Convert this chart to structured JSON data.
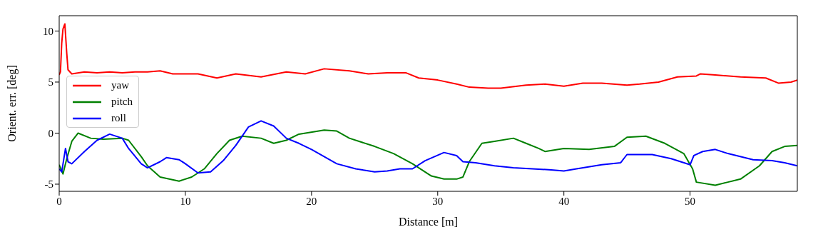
{
  "chart_data": {
    "type": "line",
    "xlabel": "Distance [m]",
    "ylabel": "Orient. err. [deg]",
    "xlim": [
      0,
      58.5
    ],
    "ylim": [
      -5.7,
      11.5
    ],
    "xticks": [
      0,
      10,
      20,
      30,
      40,
      50
    ],
    "yticks": [
      -5,
      0,
      5,
      10
    ],
    "grid": false,
    "legend": "left",
    "marker": "none",
    "line_style": "solid",
    "series": [
      {
        "name": "yaw",
        "color": "#ff0000",
        "x": [
          0,
          0.1,
          0.2,
          0.3,
          0.45,
          0.6,
          0.7,
          1,
          2,
          3,
          4,
          5,
          6,
          7,
          8,
          9,
          10,
          11,
          12.5,
          14,
          16,
          18,
          19.5,
          21,
          23,
          24.5,
          26,
          27.5,
          28.5,
          30,
          31.5,
          32.5,
          34,
          35,
          37,
          38.5,
          40,
          41.5,
          43,
          45,
          46,
          47.5,
          49,
          50.5,
          50.8,
          52,
          54,
          56,
          57,
          58,
          58.5
        ],
        "values": [
          5.7,
          6,
          8.8,
          10.2,
          10.7,
          7.8,
          6.2,
          5.8,
          6,
          5.9,
          6,
          5.9,
          6,
          6,
          6.1,
          5.8,
          5.8,
          5.8,
          5.4,
          5.8,
          5.5,
          6,
          5.8,
          6.3,
          6.1,
          5.8,
          5.9,
          5.9,
          5.4,
          5.2,
          4.8,
          4.5,
          4.4,
          4.4,
          4.7,
          4.8,
          4.6,
          4.9,
          4.9,
          4.7,
          4.8,
          5,
          5.5,
          5.6,
          5.8,
          5.7,
          5.5,
          5.4,
          4.9,
          5,
          5.2
        ]
      },
      {
        "name": "pitch",
        "color": "#008000",
        "x": [
          0,
          0.3,
          0.6,
          1,
          1.5,
          2.5,
          3.5,
          5,
          5.5,
          6.5,
          7,
          8,
          9.5,
          10.5,
          11.5,
          12.5,
          13.5,
          14.5,
          16,
          17,
          18,
          19,
          21,
          22,
          23,
          25,
          26.5,
          28,
          29.5,
          30.5,
          31.5,
          32,
          32.5,
          33.5,
          34.5,
          36,
          37,
          38,
          38.5,
          40,
          42,
          44,
          45,
          46.5,
          48,
          49.5,
          50.2,
          50.5,
          52,
          53,
          54,
          55.5,
          56.5,
          57.5,
          58.5
        ],
        "values": [
          -3.1,
          -4,
          -2.5,
          -0.8,
          0,
          -0.5,
          -0.6,
          -0.5,
          -0.7,
          -2.3,
          -3.2,
          -4.3,
          -4.7,
          -4.3,
          -3.5,
          -2,
          -0.7,
          -0.3,
          -0.5,
          -1,
          -0.7,
          -0.1,
          0.3,
          0.2,
          -0.5,
          -1.3,
          -2,
          -3,
          -4.2,
          -4.5,
          -4.5,
          -4.3,
          -2.8,
          -1,
          -0.8,
          -0.5,
          -1,
          -1.5,
          -1.8,
          -1.5,
          -1.6,
          -1.3,
          -0.4,
          -0.3,
          -1,
          -2,
          -3.5,
          -4.8,
          -5.1,
          -4.8,
          -4.5,
          -3.2,
          -1.8,
          -1.3,
          -1.2
        ]
      },
      {
        "name": "roll",
        "color": "#0000ff",
        "x": [
          0,
          0.2,
          0.5,
          0.7,
          1,
          2,
          3,
          4,
          5,
          5.5,
          6.5,
          7,
          8,
          8.5,
          9.5,
          10,
          11,
          12,
          13,
          14,
          15,
          16,
          17,
          18,
          19,
          20,
          21,
          22,
          23.5,
          25,
          26,
          27,
          28,
          29,
          30.5,
          31.5,
          32,
          33,
          34.5,
          36,
          37.5,
          39,
          40,
          41,
          43,
          44.5,
          45,
          47,
          48.5,
          50,
          50.3,
          51,
          52,
          53,
          55,
          56.5,
          57.5,
          58.5
        ],
        "values": [
          -3.5,
          -3.8,
          -1.5,
          -2.8,
          -3,
          -1.8,
          -0.7,
          -0.1,
          -0.5,
          -1.5,
          -3,
          -3.4,
          -2.8,
          -2.4,
          -2.6,
          -3,
          -3.9,
          -3.8,
          -2.7,
          -1.2,
          0.6,
          1.2,
          0.7,
          -0.5,
          -1,
          -1.6,
          -2.3,
          -3,
          -3.5,
          -3.8,
          -3.7,
          -3.5,
          -3.5,
          -2.7,
          -1.9,
          -2.2,
          -2.8,
          -2.9,
          -3.2,
          -3.4,
          -3.5,
          -3.6,
          -3.7,
          -3.5,
          -3.1,
          -2.9,
          -2.1,
          -2.1,
          -2.5,
          -3.1,
          -2.2,
          -1.8,
          -1.6,
          -2,
          -2.6,
          -2.7,
          -2.9,
          -3.2
        ]
      }
    ]
  }
}
